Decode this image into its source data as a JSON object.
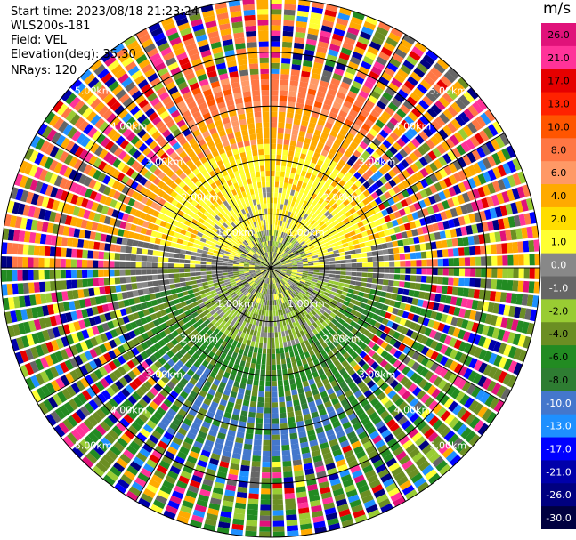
{
  "header": {
    "start_time": "Start time: 2023/08/18 21:23:24",
    "instrument": "WLS200s-181",
    "field": "Field: VEL",
    "elevation": "Elevation(deg): 35.30",
    "nrays": "NRays: 120"
  },
  "colorbar": {
    "unit": "m/s",
    "ticks": [
      "26.0",
      "21.0",
      "17.0",
      "13.0",
      "10.0",
      "8.0",
      "6.0",
      "4.0",
      "2.0",
      "1.0",
      "0.0",
      "-1.0",
      "-2.0",
      "-4.0",
      "-6.0",
      "-8.0",
      "-10.0",
      "-13.0",
      "-17.0",
      "-21.0",
      "-26.0",
      "-30.0"
    ],
    "colors": [
      "#e0127a",
      "#ff3399",
      "#e60000",
      "#ff2200",
      "#ff5500",
      "#ff7744",
      "#ff9966",
      "#ffaa00",
      "#ffdd00",
      "#ffff33",
      "#888888",
      "#666666",
      "#99cc33",
      "#6b8e23",
      "#228b22",
      "#2e7d32",
      "#4477cc",
      "#1e90ff",
      "#0000ff",
      "#0000aa",
      "#000080",
      "#000040"
    ]
  },
  "chart_data": {
    "type": "ppi",
    "field": "VEL",
    "nrays": 120,
    "range_ring_labels": [
      "1.00km",
      "2.00km",
      "3.00km",
      "4.00km",
      "5.00km"
    ],
    "max_range_km": 5.0
  }
}
